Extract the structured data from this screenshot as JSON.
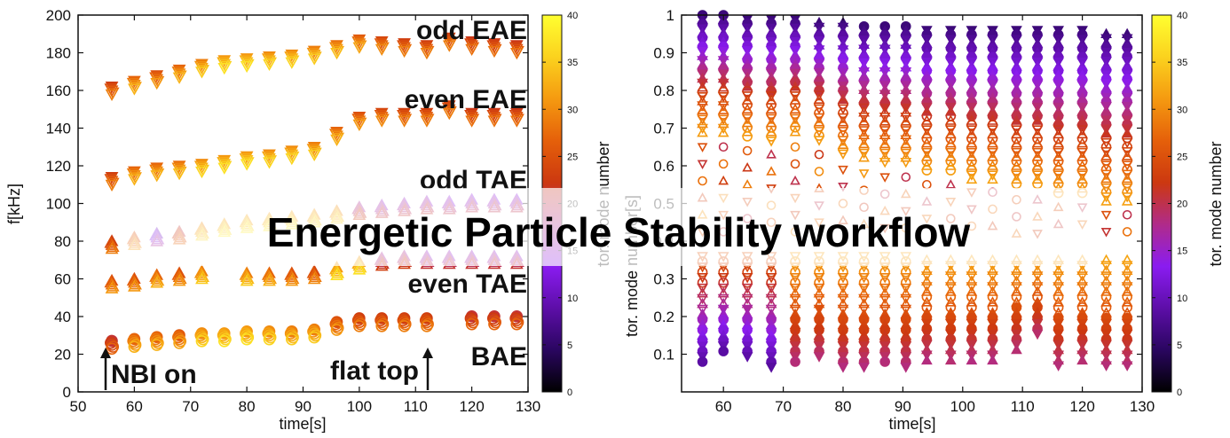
{
  "banner": {
    "title": "Energetic Particle Stability workflow"
  },
  "colors": {
    "cmap": [
      "#000000",
      "#2a0660",
      "#5d0ea8",
      "#8a1cf0",
      "#b02b8a",
      "#cc3810",
      "#e5600a",
      "#f59a10",
      "#fbd21e",
      "#ffff30"
    ]
  },
  "chart_data": [
    {
      "type": "scatter",
      "xlabel": "time[s]",
      "ylabel": "f[kHz]",
      "xlim": [
        50,
        130
      ],
      "ylim": [
        0,
        200
      ],
      "xticks": [
        50,
        60,
        70,
        80,
        90,
        100,
        110,
        120,
        130
      ],
      "yticks": [
        0,
        20,
        40,
        60,
        80,
        100,
        120,
        140,
        160,
        180,
        200
      ],
      "xtick_labels": [
        "50",
        "60",
        "70",
        "80",
        "90",
        "100",
        "110",
        "120",
        "130"
      ],
      "ytick_labels": [
        "0",
        "20",
        "40",
        "60",
        "80",
        "100",
        "120",
        "140",
        "160",
        "180",
        "200"
      ],
      "colorbar": {
        "label": "tor. mode number",
        "range": [
          0,
          40
        ],
        "ticks": [
          "0",
          "5",
          "10",
          "15",
          "20",
          "25",
          "30",
          "35",
          "40"
        ]
      },
      "annotations": [
        "odd EAE",
        "even EAE",
        "odd TAE",
        "even TAE",
        "BAE",
        "NBI on",
        "flat top"
      ],
      "series": [
        {
          "marker": "triangle-down",
          "x": [
            56,
            60,
            64,
            68,
            72,
            76,
            80,
            84,
            88,
            92,
            96,
            100,
            104,
            108,
            112,
            116,
            120,
            124,
            128
          ],
          "y": [
            160,
            163,
            166,
            169,
            172,
            174,
            175,
            176,
            177,
            179,
            182,
            185,
            184,
            183,
            182,
            186,
            184,
            183,
            182
          ],
          "c": [
            26,
            30,
            28,
            30,
            32,
            34,
            34,
            33,
            33,
            32,
            31,
            29,
            27,
            26,
            26,
            26,
            25,
            25,
            25
          ]
        },
        {
          "marker": "triangle-down",
          "x": [
            56,
            60,
            64,
            68,
            72,
            76,
            80,
            84,
            88,
            92,
            96,
            100,
            104,
            108,
            112,
            116,
            120,
            124,
            128
          ],
          "y": [
            112,
            115,
            117,
            118,
            119,
            121,
            123,
            124,
            126,
            128,
            136,
            144,
            146,
            146,
            146,
            150,
            146,
            146,
            146
          ],
          "c": [
            26,
            30,
            30,
            31,
            33,
            34,
            34,
            33,
            33,
            32,
            30,
            28,
            27,
            26,
            26,
            26,
            25,
            25,
            25
          ]
        },
        {
          "marker": "triangle-up",
          "x": [
            56,
            60,
            64,
            68,
            72,
            76,
            80,
            84,
            88,
            92,
            96,
            100,
            104,
            108,
            112,
            116,
            120,
            124,
            128
          ],
          "y": [
            78,
            80,
            82,
            83,
            85,
            87,
            89,
            90,
            91,
            92,
            94,
            96,
            97,
            98,
            99,
            99,
            100,
            100,
            100
          ],
          "c": [
            26,
            28,
            14,
            24,
            33,
            35,
            35,
            35,
            35,
            34,
            33,
            20,
            18,
            18,
            18,
            17,
            17,
            17,
            17
          ]
        },
        {
          "marker": "triangle-up",
          "x": [
            56,
            60,
            64,
            68,
            72,
            80,
            84,
            88,
            92,
            96,
            100,
            104,
            108,
            112,
            116,
            120,
            124,
            128
          ],
          "y": [
            57,
            58,
            60,
            61,
            62,
            61,
            61,
            61,
            62,
            64,
            67,
            69,
            70,
            70,
            70,
            70,
            70,
            70
          ],
          "c": [
            28,
            28,
            30,
            28,
            32,
            32,
            30,
            28,
            27,
            34,
            34,
            20,
            20,
            18,
            18,
            18,
            18,
            18
          ]
        },
        {
          "marker": "circle",
          "x": [
            56,
            60,
            64,
            68,
            72,
            76,
            80,
            84,
            88,
            92,
            96,
            100,
            104,
            108,
            112,
            120,
            124,
            128
          ],
          "y": [
            25,
            26,
            27,
            28,
            29,
            29,
            30,
            30,
            30,
            31,
            35,
            37,
            37,
            37,
            37,
            38,
            38,
            38
          ],
          "c": [
            24,
            30,
            30,
            29,
            33,
            34,
            34,
            33,
            32,
            32,
            28,
            26,
            26,
            26,
            26,
            24,
            24,
            24
          ]
        }
      ]
    },
    {
      "type": "scatter",
      "xlabel": "time[s]",
      "ylabel": "tor. mode number[s]",
      "xlim": [
        53,
        130
      ],
      "ylim": [
        0,
        1
      ],
      "xticks": [
        60,
        70,
        80,
        90,
        100,
        110,
        120,
        130
      ],
      "yticks": [
        0.1,
        0.2,
        0.3,
        0.4,
        0.5,
        0.6,
        0.7,
        0.8,
        0.9,
        1
      ],
      "xtick_labels": [
        "60",
        "70",
        "80",
        "90",
        "100",
        "110",
        "120",
        "130"
      ],
      "ytick_labels": [
        "0.1",
        "0.2",
        "0.3",
        "0.4",
        "0.5",
        "0.6",
        "0.7",
        "0.8",
        "0.9",
        "1"
      ],
      "colorbar": {
        "label": "tor. mode number",
        "range": [
          0,
          40
        ],
        "ticks": [
          "0",
          "5",
          "10",
          "15",
          "20",
          "25",
          "30",
          "35",
          "40"
        ]
      },
      "time_columns": [
        56.5,
        60,
        64,
        68,
        72,
        76,
        80,
        83.5,
        87,
        90.5,
        94,
        98,
        101.5,
        105,
        109,
        112.5,
        116,
        120,
        124,
        127.5
      ],
      "upper_band_top": [
        1.0,
        1.0,
        0.99,
        0.99,
        0.99,
        0.98,
        0.98,
        0.97,
        0.97,
        0.97,
        0.96,
        0.96,
        0.96,
        0.96,
        0.96,
        0.96,
        0.96,
        0.96,
        0.95,
        0.95
      ],
      "upper_band_bottom": [
        0.68,
        0.68,
        0.67,
        0.66,
        0.68,
        0.66,
        0.62,
        0.61,
        0.6,
        0.6,
        0.58,
        0.58,
        0.56,
        0.56,
        0.54,
        0.54,
        0.52,
        0.52,
        0.5,
        0.5
      ],
      "lower_band_top": [
        0.36,
        0.36,
        0.36,
        0.36,
        0.36,
        0.36,
        0.36,
        0.36,
        0.36,
        0.36,
        0.35,
        0.35,
        0.35,
        0.35,
        0.35,
        0.35,
        0.35,
        0.35,
        0.35,
        0.35
      ],
      "lower_band_bottom": [
        0.07,
        0.1,
        0.08,
        0.06,
        0.07,
        0.08,
        0.06,
        0.06,
        0.07,
        0.06,
        0.08,
        0.07,
        0.08,
        0.08,
        0.1,
        0.14,
        0.06,
        0.07,
        0.06,
        0.06
      ]
    }
  ]
}
